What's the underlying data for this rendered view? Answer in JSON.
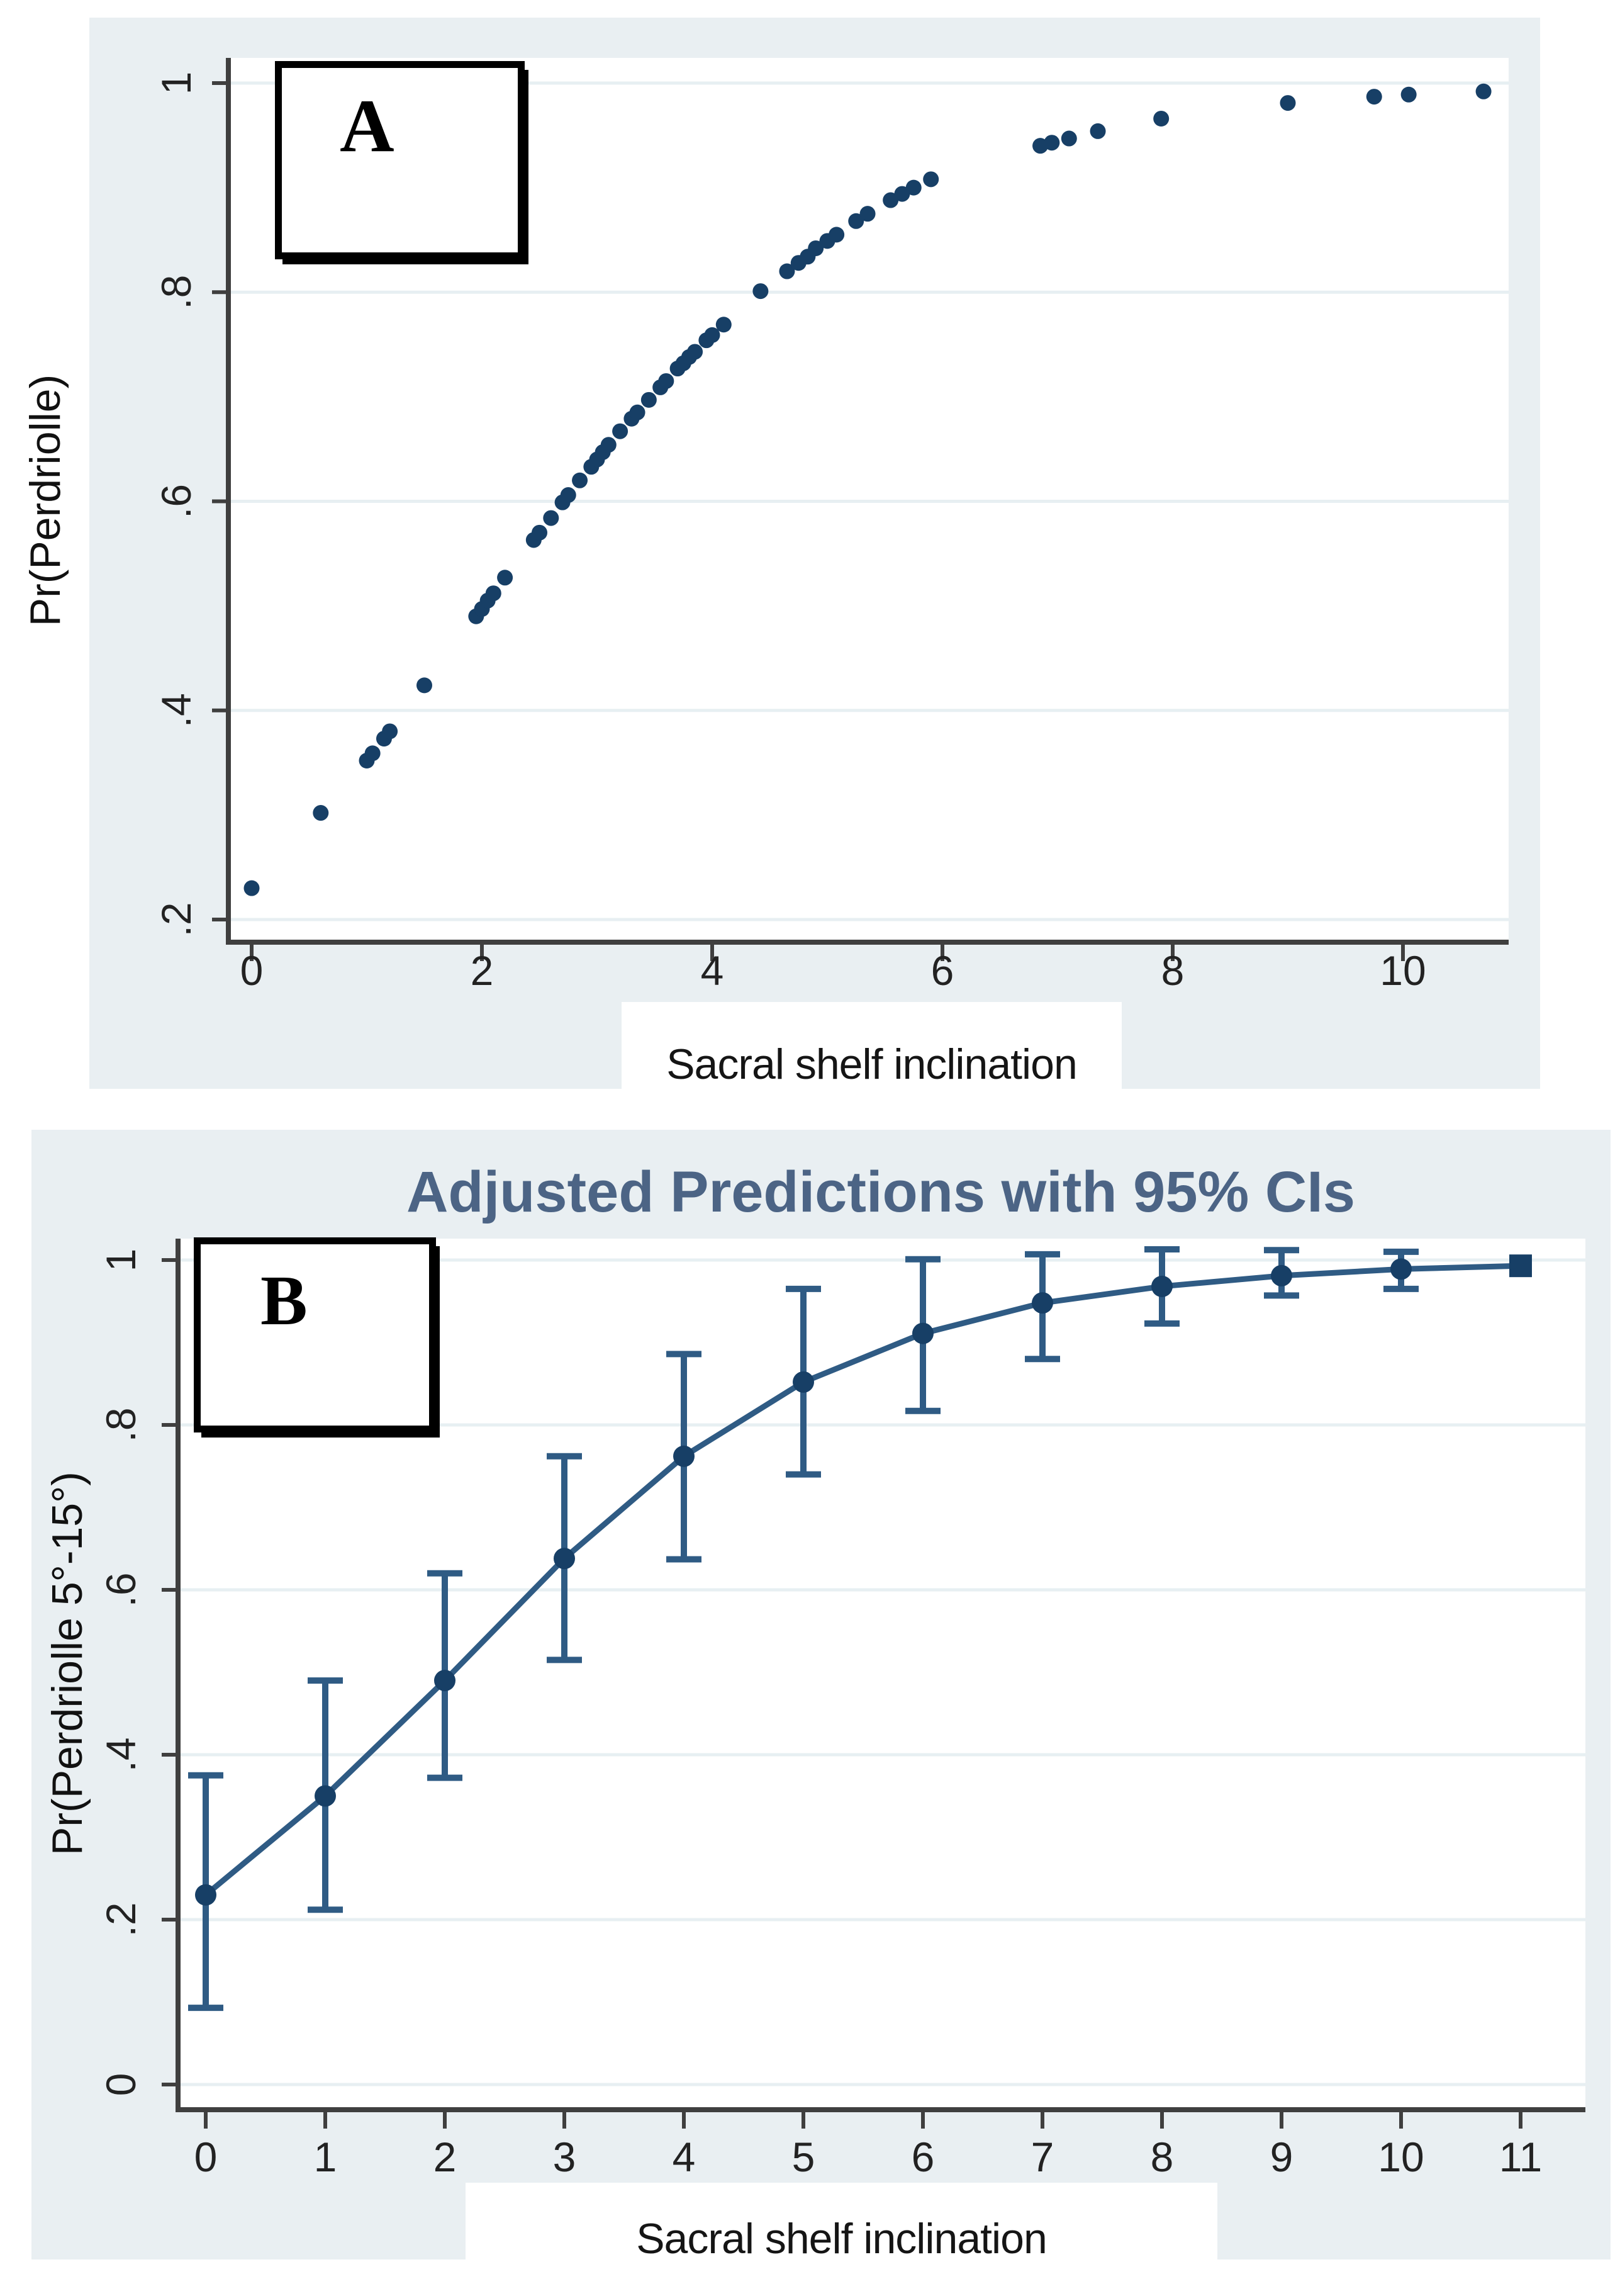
{
  "figure": {
    "panel_a_letter": "A",
    "panel_b_letter": "B"
  },
  "colors": {
    "panel_background": "#e9eff2",
    "plot_background": "#ffffff",
    "gridline": "#e7eff2",
    "axis": "#3f3f3f",
    "tick_label": "#222222",
    "axis_title": "#111111",
    "marker": "#173f66",
    "ci_line": "#2f5b84",
    "trend_line": "#2f5b84",
    "title": "#4c6485",
    "label_text": "#151515"
  },
  "chart_data": [
    {
      "id": "A",
      "type": "scatter",
      "title": "",
      "xlabel": "Sacral shelf inclination",
      "ylabel": "Pr(Perdriolle)",
      "xlim": [
        -0.2,
        10.9
      ],
      "ylim": [
        0.12,
        1.04
      ],
      "grid": "horizontal",
      "legend": null,
      "x_tick_labels": [
        "0",
        "2",
        "4",
        "6",
        "8",
        "10"
      ],
      "x_tick_values": [
        0,
        2,
        4,
        6,
        8,
        10
      ],
      "y_tick_labels": [
        ".2",
        ".4",
        ".6",
        ".8",
        "1"
      ],
      "y_tick_values": [
        0.2,
        0.4,
        0.6,
        0.8,
        1.0
      ],
      "points": [
        [
          0,
          0.23
        ],
        [
          0.6,
          0.302
        ],
        [
          1.0,
          0.352
        ],
        [
          1.05,
          0.359
        ],
        [
          1.15,
          0.373
        ],
        [
          1.2,
          0.38
        ],
        [
          1.5,
          0.424
        ],
        [
          1.95,
          0.49
        ],
        [
          2.0,
          0.497
        ],
        [
          2.05,
          0.505
        ],
        [
          2.1,
          0.512
        ],
        [
          2.2,
          0.527
        ],
        [
          2.45,
          0.563
        ],
        [
          2.5,
          0.57
        ],
        [
          2.6,
          0.584
        ],
        [
          2.7,
          0.599
        ],
        [
          2.75,
          0.606
        ],
        [
          2.85,
          0.62
        ],
        [
          2.95,
          0.633
        ],
        [
          3.0,
          0.64
        ],
        [
          3.05,
          0.647
        ],
        [
          3.1,
          0.654
        ],
        [
          3.2,
          0.667
        ],
        [
          3.3,
          0.679
        ],
        [
          3.35,
          0.685
        ],
        [
          3.45,
          0.697
        ],
        [
          3.55,
          0.709
        ],
        [
          3.6,
          0.715
        ],
        [
          3.7,
          0.727
        ],
        [
          3.75,
          0.732
        ],
        [
          3.8,
          0.738
        ],
        [
          3.85,
          0.743
        ],
        [
          3.95,
          0.754
        ],
        [
          4.0,
          0.759
        ],
        [
          4.1,
          0.769
        ],
        [
          4.42,
          0.801
        ],
        [
          4.65,
          0.82
        ],
        [
          4.75,
          0.828
        ],
        [
          4.83,
          0.834
        ],
        [
          4.9,
          0.842
        ],
        [
          5.0,
          0.849
        ],
        [
          5.08,
          0.855
        ],
        [
          5.25,
          0.868
        ],
        [
          5.35,
          0.875
        ],
        [
          5.55,
          0.888
        ],
        [
          5.65,
          0.894
        ],
        [
          5.75,
          0.9
        ],
        [
          5.9,
          0.908
        ],
        [
          6.85,
          0.94
        ],
        [
          6.95,
          0.943
        ],
        [
          7.1,
          0.947
        ],
        [
          7.35,
          0.954
        ],
        [
          7.9,
          0.966
        ],
        [
          9.0,
          0.981
        ],
        [
          9.75,
          0.987
        ],
        [
          10.05,
          0.989
        ],
        [
          10.7,
          0.992
        ]
      ]
    },
    {
      "id": "B",
      "type": "line",
      "title": "Adjusted Predictions with 95% CIs",
      "xlabel": "Sacral shelf inclination",
      "ylabel": "Pr(Perdriolle 5°-15°)",
      "xlim": [
        -0.25,
        11.55
      ],
      "ylim": [
        -0.05,
        1.05
      ],
      "grid": "horizontal",
      "legend": null,
      "x": [
        0,
        1,
        2,
        3,
        4,
        5,
        6,
        7,
        8,
        9,
        10,
        11
      ],
      "x_tick_labels": [
        "0",
        "1",
        "2",
        "3",
        "4",
        "5",
        "6",
        "7",
        "8",
        "9",
        "10",
        "11"
      ],
      "x_tick_values": [
        0,
        1,
        2,
        3,
        4,
        5,
        6,
        7,
        8,
        9,
        10,
        11
      ],
      "y_tick_labels": [
        "0",
        ".2",
        ".4",
        ".6",
        ".8",
        "1"
      ],
      "y_tick_values": [
        0,
        0.2,
        0.4,
        0.6,
        0.8,
        1.0
      ],
      "predictions": [
        0.23,
        0.35,
        0.49,
        0.638,
        0.762,
        0.852,
        0.911,
        0.948,
        0.968,
        0.981,
        0.989,
        0.993
      ],
      "ci_low": [
        0.093,
        0.212,
        0.372,
        0.515,
        0.637,
        0.74,
        0.817,
        0.88,
        0.923,
        0.957,
        0.965,
        null
      ],
      "ci_high": [
        0.375,
        0.49,
        0.62,
        0.762,
        0.886,
        0.965,
        1.001,
        1.007,
        1.013,
        1.012,
        1.01,
        null
      ],
      "ci_label": "95% CI",
      "last_point_marker": "square"
    }
  ]
}
